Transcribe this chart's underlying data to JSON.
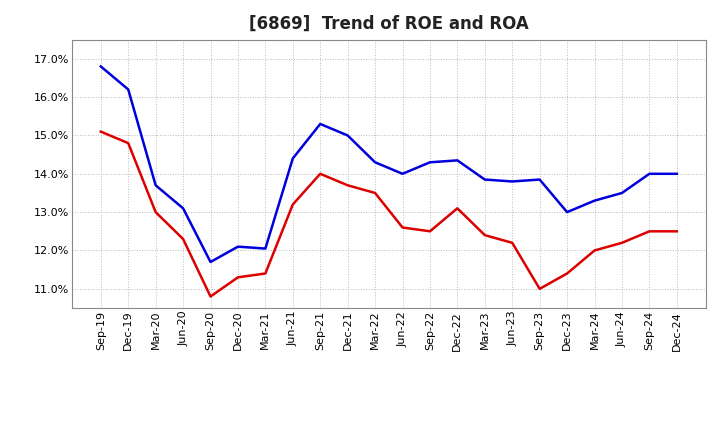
{
  "title": "[6869]  Trend of ROE and ROA",
  "x_labels": [
    "Sep-19",
    "Dec-19",
    "Mar-20",
    "Jun-20",
    "Sep-20",
    "Dec-20",
    "Mar-21",
    "Jun-21",
    "Sep-21",
    "Dec-21",
    "Mar-22",
    "Jun-22",
    "Sep-22",
    "Dec-22",
    "Mar-23",
    "Jun-23",
    "Sep-23",
    "Dec-23",
    "Mar-24",
    "Jun-24",
    "Sep-24",
    "Dec-24"
  ],
  "ROE": [
    15.1,
    14.8,
    13.0,
    12.3,
    10.8,
    11.3,
    11.4,
    13.2,
    14.0,
    13.7,
    13.5,
    12.6,
    12.5,
    13.1,
    12.4,
    12.2,
    11.0,
    11.4,
    12.0,
    12.2,
    12.5,
    12.5
  ],
  "ROA": [
    16.8,
    16.2,
    13.7,
    13.1,
    11.7,
    12.1,
    12.05,
    14.4,
    15.3,
    15.0,
    14.3,
    14.0,
    14.3,
    14.35,
    13.85,
    13.8,
    13.85,
    13.0,
    13.3,
    13.5,
    14.0,
    14.0
  ],
  "ROE_color": "#dd0000",
  "ROA_color": "#0000dd",
  "background_color": "#ffffff",
  "grid_color": "#bbbbbb",
  "ylim": [
    10.5,
    17.5
  ],
  "yticks": [
    11.0,
    12.0,
    13.0,
    14.0,
    15.0,
    16.0,
    17.0
  ],
  "title_fontsize": 12,
  "tick_fontsize": 8,
  "legend_fontsize": 10,
  "linewidth": 1.8
}
